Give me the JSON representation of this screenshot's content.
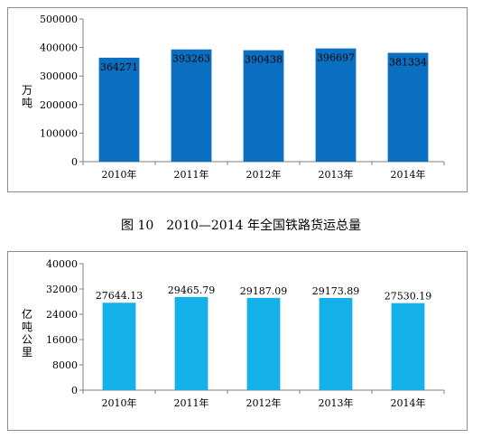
{
  "charts": [
    {
      "type": "bar",
      "categories": [
        "2010年",
        "2011年",
        "2012年",
        "2013年",
        "2014年"
      ],
      "values": [
        364271,
        393263,
        390438,
        396697,
        381334
      ],
      "value_labels": [
        "364271",
        "393263",
        "390438",
        "396697",
        "381334"
      ],
      "ylabel": "万吨",
      "ylim": [
        0,
        500000
      ],
      "yticks": [
        0,
        100000,
        200000,
        300000,
        400000,
        500000
      ],
      "ytick_labels": [
        "0",
        "100000",
        "200000",
        "300000",
        "400000",
        "500000"
      ],
      "bar_color": "#0a6fc0",
      "grid": false
    },
    {
      "type": "bar",
      "categories": [
        "2010年",
        "2011年",
        "2012年",
        "2013年",
        "2014年"
      ],
      "values": [
        27644.13,
        29465.79,
        29187.09,
        29173.89,
        27530.19
      ],
      "value_labels": [
        "27644.13",
        "29465.79",
        "29187.09",
        "29173.89",
        "27530.19"
      ],
      "ylabel": "亿吨公里",
      "ylim": [
        0,
        40000
      ],
      "yticks": [
        0,
        8000,
        16000,
        24000,
        32000,
        40000
      ],
      "ytick_labels": [
        "0",
        "8000",
        "16000",
        "24000",
        "32000",
        "40000"
      ],
      "bar_color": "#13b0ea",
      "grid": false
    }
  ],
  "caption": "图 10　2010—2014 年全国铁路货运总量"
}
